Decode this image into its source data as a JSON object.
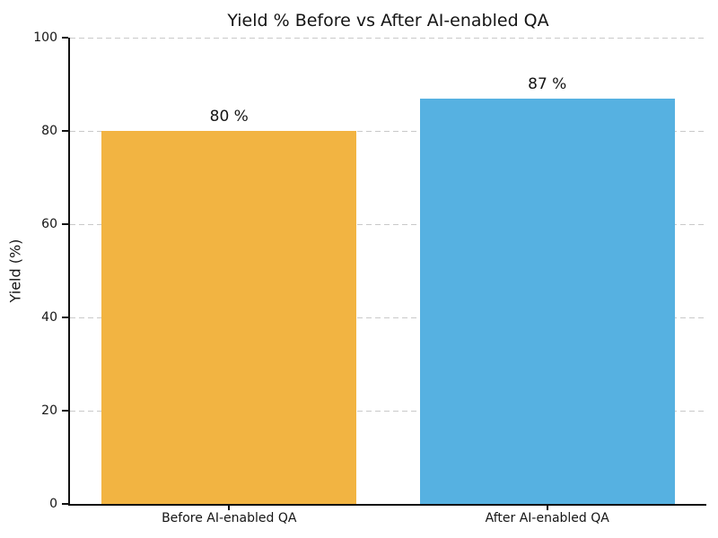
{
  "chart_data": {
    "type": "bar",
    "title": "Yield % Before vs After AI-enabled QA",
    "xlabel": "",
    "ylabel": "Yield (%)",
    "categories": [
      "Before AI-enabled QA",
      "After AI-enabled QA"
    ],
    "values": [
      80,
      87
    ],
    "bar_labels": [
      "80 %",
      "87 %"
    ],
    "bar_colors": [
      "#F2B442",
      "#56B1E1"
    ],
    "ylim": [
      0,
      100
    ],
    "yticks": [
      0,
      20,
      40,
      60,
      80,
      100
    ],
    "bar_width_fraction": 0.8,
    "grid": "horizontal dashed gridlines at y ticks",
    "gridline_color": "#c9c9c9",
    "spines": [
      "left",
      "bottom"
    ],
    "legend": "none",
    "background_color": "#ffffff",
    "text_color": "#151515"
  }
}
